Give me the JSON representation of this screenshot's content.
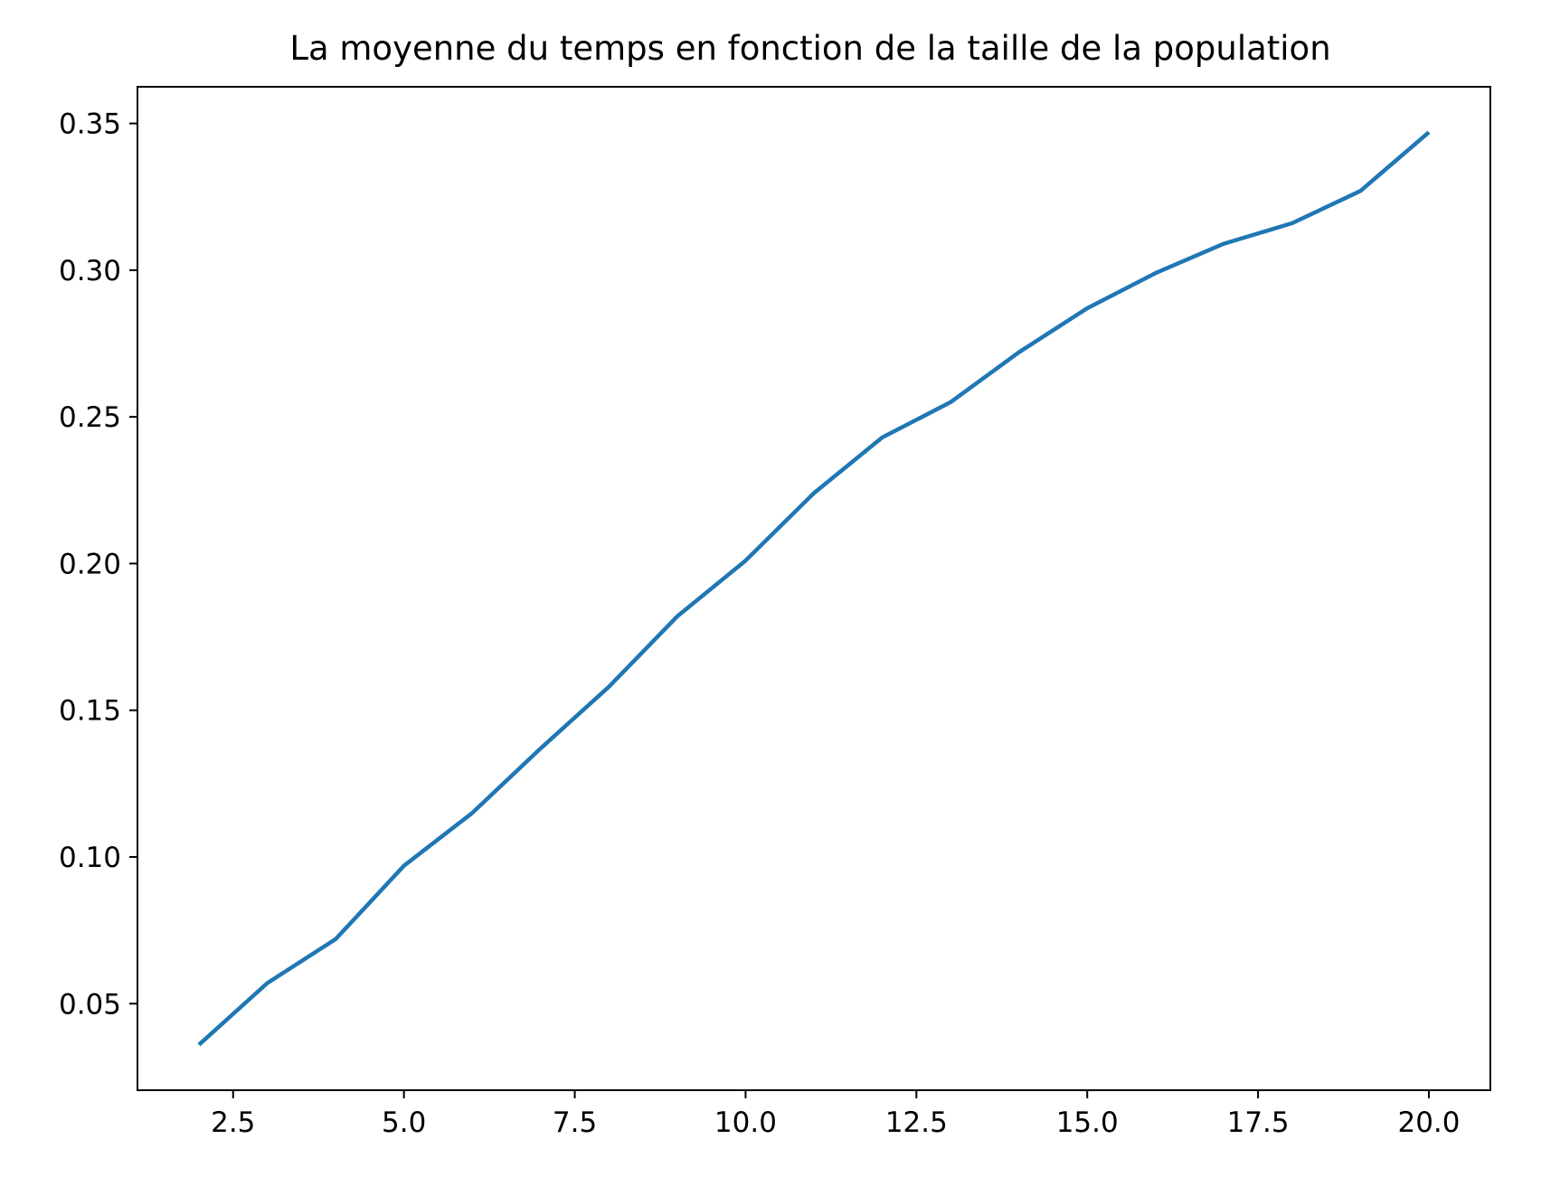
{
  "chart_data": {
    "type": "line",
    "title": "La moyenne du temps en fonction de la taille de la population",
    "xlabel": "",
    "ylabel": "",
    "xlim": [
      1.1,
      20.9
    ],
    "ylim": [
      0.0205,
      0.3625
    ],
    "x_ticks": [
      {
        "value": 2.5,
        "label": "2.5"
      },
      {
        "value": 5.0,
        "label": "5.0"
      },
      {
        "value": 7.5,
        "label": "7.5"
      },
      {
        "value": 10.0,
        "label": "10.0"
      },
      {
        "value": 12.5,
        "label": "12.5"
      },
      {
        "value": 15.0,
        "label": "15.0"
      },
      {
        "value": 17.5,
        "label": "17.5"
      },
      {
        "value": 20.0,
        "label": "20.0"
      }
    ],
    "y_ticks": [
      {
        "value": 0.05,
        "label": "0.05"
      },
      {
        "value": 0.1,
        "label": "0.10"
      },
      {
        "value": 0.15,
        "label": "0.15"
      },
      {
        "value": 0.2,
        "label": "0.20"
      },
      {
        "value": 0.25,
        "label": "0.25"
      },
      {
        "value": 0.3,
        "label": "0.30"
      },
      {
        "value": 0.35,
        "label": "0.35"
      }
    ],
    "grid": false,
    "legend": "none",
    "series": [
      {
        "color": "#1f77b4",
        "x": [
          2,
          3,
          4,
          5,
          6,
          7,
          8,
          9,
          10,
          11,
          12,
          13,
          14,
          15,
          16,
          17,
          18,
          19,
          20
        ],
        "y": [
          0.036,
          0.057,
          0.072,
          0.097,
          0.115,
          0.137,
          0.158,
          0.182,
          0.201,
          0.224,
          0.243,
          0.255,
          0.272,
          0.287,
          0.299,
          0.309,
          0.316,
          0.327,
          0.347
        ]
      }
    ]
  }
}
